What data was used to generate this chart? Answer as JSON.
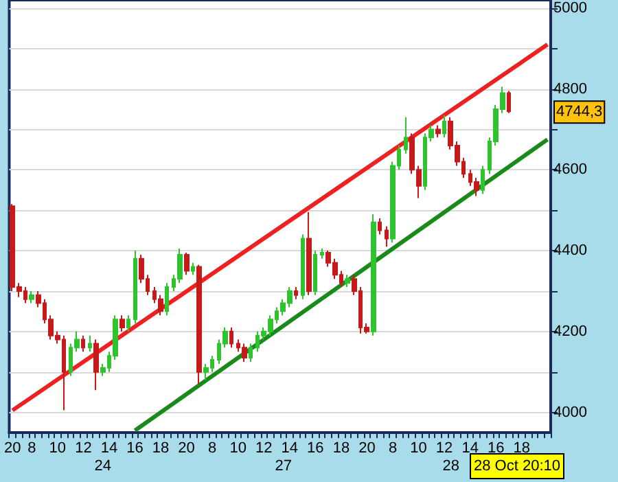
{
  "chart_data": {
    "type": "candlestick",
    "categories": [
      "20",
      null,
      null,
      "8",
      null,
      null,
      null,
      "10",
      null,
      null,
      null,
      "12",
      null,
      null,
      null,
      "14",
      null,
      null,
      null,
      "16",
      null,
      null,
      null,
      "18",
      null,
      null,
      null,
      "20",
      null,
      null,
      null,
      "8",
      null,
      null,
      null,
      "10",
      null,
      null,
      null,
      "12",
      null,
      null,
      null,
      "14",
      null,
      null,
      null,
      "16",
      null,
      null,
      null,
      "18",
      null,
      null,
      null,
      "20",
      null,
      null,
      null,
      "8",
      null,
      null,
      null,
      "10",
      null,
      null,
      null,
      "12",
      null,
      null,
      null,
      "14",
      null,
      null,
      null,
      "16",
      null,
      null,
      null,
      "18",
      null,
      null,
      null,
      null
    ],
    "series": [
      {
        "type": "candlestick",
        "colors": [
          "#c41a1a",
          "#c41a1a",
          "#c41a1a",
          "#2fc42f",
          "#c41a1a",
          "#c41a1a",
          "#c41a1a",
          "#c41a1a",
          "#c41a1a",
          "#2fc42f",
          "#2fc42f",
          "#c41a1a",
          "#2fc42f",
          "#c41a1a",
          "#2fc42f",
          "#2fc42f",
          "#2fc42f",
          "#c41a1a",
          "#2fc42f",
          "#2fc42f",
          "#c41a1a",
          "#c41a1a",
          "#c41a1a",
          "#c41a1a",
          "#2fc42f",
          "#2fc42f",
          "#2fc42f",
          "#c41a1a",
          "#2fc42f",
          "#c41a1a",
          "#2fc42f",
          "#2fc42f",
          "#2fc42f",
          "#2fc42f",
          "#c41a1a",
          "#c41a1a",
          "#c41a1a",
          "#2fc42f",
          "#2fc42f",
          "#2fc42f",
          "#2fc42f",
          "#2fc42f",
          "#2fc42f",
          "#2fc42f",
          "#c41a1a",
          "#2fc42f",
          "#c41a1a",
          "#2fc42f",
          "#2fc42f",
          "#c41a1a",
          "#c41a1a",
          "#c41a1a",
          "#2fc42f",
          "#c41a1a",
          "#c41a1a",
          "#c41a1a",
          "#2fc42f",
          "#c41a1a",
          "#c41a1a",
          "#2fc42f",
          "#2fc42f",
          "#2fc42f",
          "#c41a1a",
          "#c41a1a",
          "#2fc42f",
          "#2fc42f",
          "#c41a1a",
          "#2fc42f",
          "#c41a1a",
          "#c41a1a",
          "#c41a1a",
          "#c41a1a",
          "#c41a1a",
          "#2fc42f",
          "#2fc42f",
          "#2fc42f",
          "#2fc42f",
          "#c41a1a",
          null,
          null,
          null,
          null,
          null,
          null
        ],
        "ohlc": [
          [
            4510,
            4515,
            4300,
            4310
          ],
          [
            4310,
            4320,
            4285,
            4300
          ],
          [
            4300,
            4310,
            4270,
            4280
          ],
          [
            4280,
            4300,
            4270,
            4290
          ],
          [
            4290,
            4300,
            4260,
            4270
          ],
          [
            4270,
            4280,
            4220,
            4230
          ],
          [
            4230,
            4240,
            4180,
            4190
          ],
          [
            4190,
            4200,
            4170,
            4180
          ],
          [
            4180,
            4190,
            4005,
            4100
          ],
          [
            4100,
            4170,
            4090,
            4160
          ],
          [
            4160,
            4200,
            4150,
            4180
          ],
          [
            4180,
            4190,
            4150,
            4160
          ],
          [
            4160,
            4190,
            4150,
            4170
          ],
          [
            4170,
            4180,
            4055,
            4100
          ],
          [
            4100,
            4120,
            4090,
            4110
          ],
          [
            4110,
            4150,
            4100,
            4140
          ],
          [
            4140,
            4240,
            4130,
            4230
          ],
          [
            4230,
            4240,
            4200,
            4210
          ],
          [
            4210,
            4240,
            4200,
            4230
          ],
          [
            4230,
            4400,
            4220,
            4380
          ],
          [
            4380,
            4390,
            4320,
            4330
          ],
          [
            4330,
            4340,
            4290,
            4300
          ],
          [
            4300,
            4310,
            4270,
            4280
          ],
          [
            4280,
            4290,
            4240,
            4250
          ],
          [
            4250,
            4320,
            4240,
            4310
          ],
          [
            4310,
            4340,
            4300,
            4330
          ],
          [
            4330,
            4405,
            4320,
            4390
          ],
          [
            4390,
            4395,
            4340,
            4350
          ],
          [
            4350,
            4370,
            4340,
            4360
          ],
          [
            4360,
            4365,
            4070,
            4100
          ],
          [
            4100,
            4120,
            4080,
            4110
          ],
          [
            4110,
            4140,
            4100,
            4130
          ],
          [
            4130,
            4180,
            4120,
            4170
          ],
          [
            4170,
            4210,
            4160,
            4200
          ],
          [
            4200,
            4210,
            4160,
            4170
          ],
          [
            4170,
            4180,
            4150,
            4160
          ],
          [
            4160,
            4170,
            4125,
            4135
          ],
          [
            4135,
            4170,
            4125,
            4160
          ],
          [
            4160,
            4200,
            4150,
            4190
          ],
          [
            4190,
            4210,
            4180,
            4200
          ],
          [
            4200,
            4240,
            4190,
            4230
          ],
          [
            4230,
            4260,
            4220,
            4250
          ],
          [
            4250,
            4280,
            4240,
            4270
          ],
          [
            4270,
            4310,
            4260,
            4300
          ],
          [
            4300,
            4310,
            4280,
            4290
          ],
          [
            4290,
            4440,
            4280,
            4430
          ],
          [
            4430,
            4495,
            4290,
            4300
          ],
          [
            4300,
            4400,
            4290,
            4390
          ],
          [
            4390,
            4405,
            4380,
            4395
          ],
          [
            4395,
            4400,
            4360,
            4370
          ],
          [
            4370,
            4380,
            4330,
            4340
          ],
          [
            4340,
            4350,
            4310,
            4320
          ],
          [
            4320,
            4340,
            4310,
            4330
          ],
          [
            4330,
            4340,
            4290,
            4300
          ],
          [
            4300,
            4310,
            4195,
            4210
          ],
          [
            4210,
            4220,
            4195,
            4200
          ],
          [
            4200,
            4490,
            4190,
            4470
          ],
          [
            4470,
            4480,
            4440,
            4450
          ],
          [
            4450,
            4460,
            4410,
            4430
          ],
          [
            4430,
            4620,
            4420,
            4610
          ],
          [
            4610,
            4660,
            4600,
            4650
          ],
          [
            4650,
            4730,
            4640,
            4680
          ],
          [
            4680,
            4690,
            4590,
            4600
          ],
          [
            4600,
            4610,
            4530,
            4560
          ],
          [
            4560,
            4690,
            4550,
            4680
          ],
          [
            4680,
            4710,
            4670,
            4700
          ],
          [
            4700,
            4710,
            4680,
            4690
          ],
          [
            4690,
            4735,
            4680,
            4720
          ],
          [
            4720,
            4730,
            4650,
            4660
          ],
          [
            4660,
            4670,
            4610,
            4620
          ],
          [
            4620,
            4630,
            4580,
            4590
          ],
          [
            4590,
            4600,
            4560,
            4570
          ],
          [
            4570,
            4580,
            4535,
            4550
          ],
          [
            4550,
            4610,
            4540,
            4600
          ],
          [
            4600,
            4680,
            4590,
            4670
          ],
          [
            4670,
            4760,
            4660,
            4750
          ],
          [
            4750,
            4805,
            4740,
            4790
          ],
          [
            4790,
            4795,
            4740,
            4744.3
          ],
          null,
          null,
          null,
          null,
          null,
          null
        ]
      },
      {
        "type": "line",
        "color": "#ee2020",
        "values": [
          4005,
          null,
          null,
          null,
          null,
          null,
          null,
          null,
          null,
          null,
          null,
          null,
          null,
          null,
          null,
          null,
          null,
          null,
          null,
          null,
          null,
          null,
          null,
          null,
          null,
          null,
          null,
          null,
          null,
          null,
          null,
          null,
          null,
          null,
          null,
          null,
          null,
          null,
          null,
          null,
          null,
          null,
          null,
          null,
          null,
          null,
          null,
          null,
          null,
          null,
          null,
          null,
          null,
          null,
          null,
          null,
          null,
          null,
          null,
          null,
          null,
          null,
          null,
          null,
          null,
          null,
          null,
          null,
          null,
          null,
          null,
          null,
          null,
          null,
          null,
          null,
          null,
          null,
          null,
          null,
          null,
          null,
          null,
          4910
        ]
      },
      {
        "type": "line",
        "color": "#1a8a1a",
        "values": [
          null,
          null,
          null,
          null,
          null,
          null,
          null,
          null,
          null,
          null,
          null,
          null,
          null,
          null,
          null,
          null,
          null,
          null,
          null,
          3955,
          null,
          null,
          null,
          null,
          null,
          null,
          null,
          null,
          null,
          null,
          null,
          null,
          null,
          null,
          null,
          null,
          null,
          null,
          null,
          null,
          null,
          null,
          null,
          null,
          null,
          null,
          null,
          null,
          null,
          null,
          null,
          null,
          null,
          null,
          null,
          null,
          null,
          null,
          null,
          null,
          null,
          null,
          null,
          null,
          null,
          null,
          null,
          null,
          null,
          null,
          null,
          null,
          null,
          null,
          null,
          null,
          null,
          null,
          null,
          null,
          null,
          null,
          null,
          4675
        ]
      }
    ],
    "ylim": [
      3950,
      5020
    ],
    "yticks": [
      4000,
      {
        "value": 4100,
        "label": null
      },
      4200,
      {
        "value": 4300,
        "label": null
      },
      4400,
      {
        "value": 4500,
        "label": null
      },
      4600,
      {
        "value": 4700,
        "label": null
      },
      4800,
      {
        "value": 4900,
        "label": null
      },
      5000
    ],
    "grid": "y",
    "line_style": "solid",
    "annotations": [
      "24",
      "27",
      "28",
      {
        "text": "4744,3",
        "y": 4744.3
      },
      "28 Oct 20:10"
    ]
  }
}
